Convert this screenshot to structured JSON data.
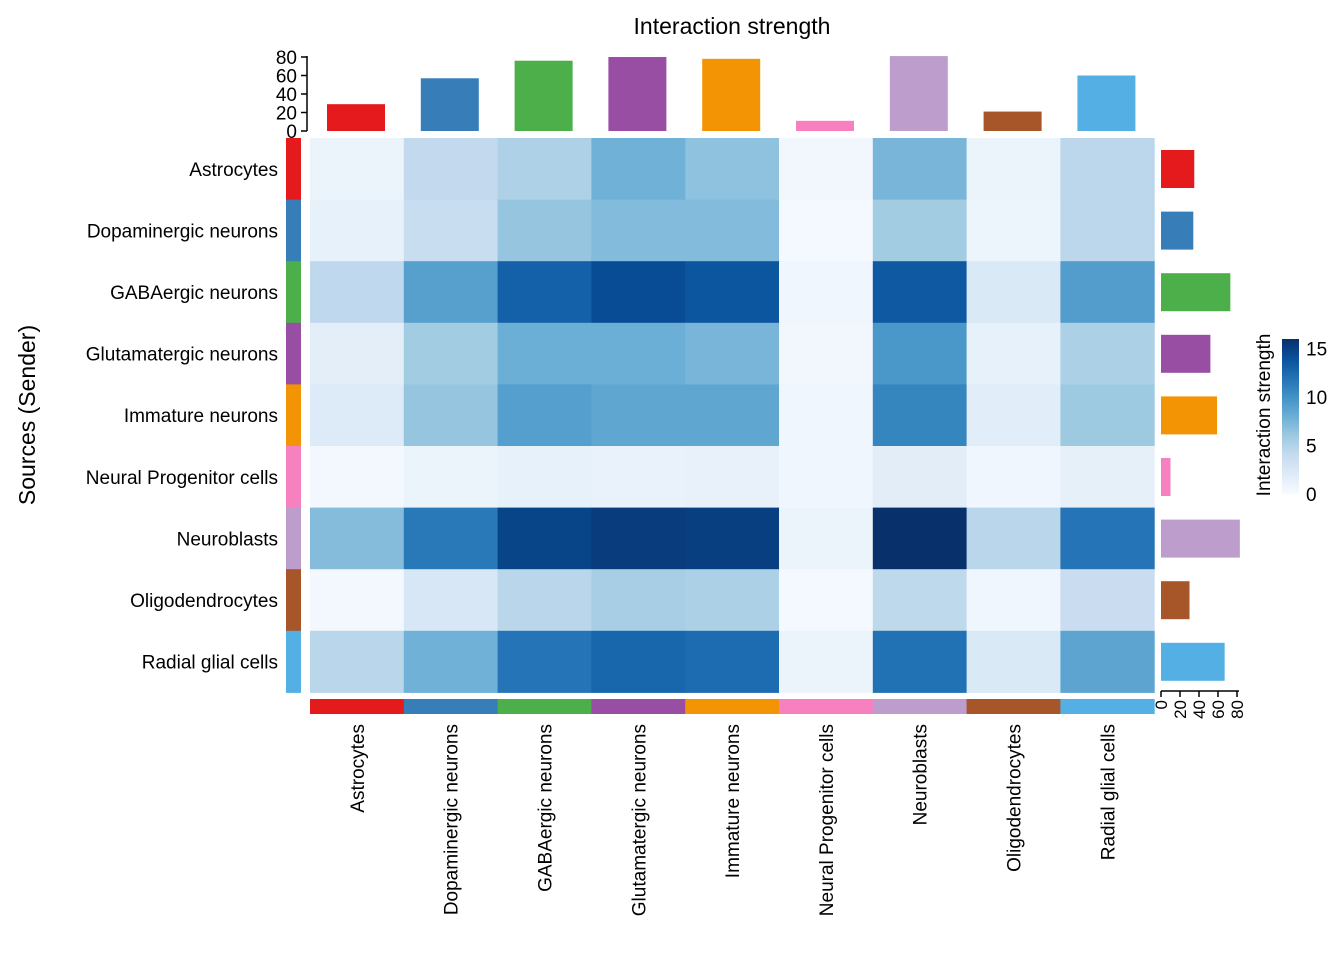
{
  "chart_data": {
    "type": "heatmap",
    "title": "Interaction strength",
    "ylabel": "Sources (Sender)",
    "xlabel": "",
    "rows": [
      "Astrocytes",
      "Dopaminergic neurons",
      "GABAergic neurons",
      "Glutamatergic neurons",
      "Immature neurons",
      "Neural Progenitor cells",
      "Neuroblasts",
      "Oligodendrocytes",
      "Radial glial cells"
    ],
    "columns": [
      "Astrocytes",
      "Dopaminergic neurons",
      "GABAergic neurons",
      "Glutamatergic neurons",
      "Immature neurons",
      "Neural Progenitor cells",
      "Neuroblasts",
      "Oligodendrocytes",
      "Radial glial cells"
    ],
    "group_colors": [
      "#E41A1C",
      "#377EB8",
      "#4DAF4A",
      "#984EA3",
      "#F29403",
      "#F781BF",
      "#BC9DCC",
      "#A65628",
      "#54B0E4"
    ],
    "values": [
      [
        1.0,
        4.2,
        5.2,
        7.8,
        6.6,
        0.5,
        7.5,
        0.9,
        4.5
      ],
      [
        1.3,
        3.8,
        6.3,
        7.1,
        7.1,
        0.3,
        5.8,
        0.8,
        4.5
      ],
      [
        4.3,
        9.0,
        13.0,
        14.3,
        13.7,
        0.6,
        13.5,
        2.3,
        9.2
      ],
      [
        1.6,
        5.8,
        8.0,
        8.0,
        7.5,
        0.5,
        9.6,
        1.3,
        5.3
      ],
      [
        2.1,
        6.3,
        9.1,
        8.6,
        8.6,
        0.6,
        10.8,
        1.8,
        6.0
      ],
      [
        0.4,
        0.9,
        1.3,
        1.1,
        1.2,
        0.6,
        1.7,
        0.6,
        1.4
      ],
      [
        7.0,
        11.5,
        14.8,
        15.3,
        15.1,
        1.0,
        16.0,
        4.6,
        11.8
      ],
      [
        0.4,
        2.5,
        4.6,
        5.5,
        5.3,
        0.3,
        4.4,
        0.6,
        3.7
      ],
      [
        4.6,
        7.8,
        11.8,
        12.7,
        12.3,
        0.9,
        12.0,
        2.3,
        8.7
      ]
    ],
    "column_totals": [
      29,
      57,
      76,
      80,
      78,
      11,
      81,
      21,
      60
    ],
    "row_totals": [
      35,
      34,
      73,
      52,
      59,
      10,
      83,
      30,
      67
    ],
    "colorbar": {
      "title": "Interaction strength",
      "range": [
        0,
        16
      ],
      "ticks": [
        0,
        5,
        10,
        15
      ]
    },
    "top_bar_axis": {
      "range": [
        0,
        80
      ],
      "ticks": [
        0,
        20,
        40,
        60,
        80
      ]
    },
    "right_bar_axis": {
      "range": [
        0,
        80
      ],
      "ticks": [
        0,
        20,
        40,
        60,
        80
      ]
    }
  }
}
